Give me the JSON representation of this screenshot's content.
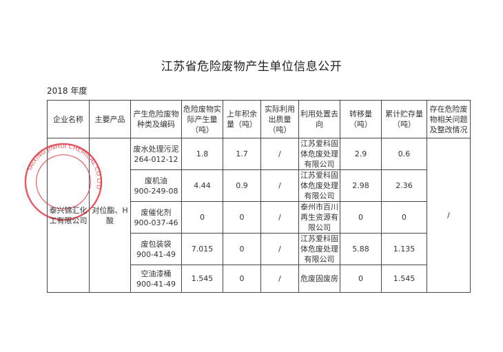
{
  "title": "江苏省危险废物产生单位信息公开",
  "year": "2018 年度",
  "headers": [
    "企业名称",
    "主要产品",
    "产生危险废物种类及编码",
    "危险废物实际产生量（吨）",
    "上年积余量（吨）",
    "实际利用出质量（吨）",
    "利用处置去向",
    "转移量（吨）",
    "累计贮存量（吨）",
    "存在危险废物相关问题及整改情况"
  ],
  "company": "泰兴锦汇化工有限公司",
  "product": "对位酯、H 酸",
  "issue": "/",
  "rows": [
    {
      "waste": "废水处理污泥",
      "code": "264-012-12",
      "produced": "1.8",
      "carry": "1.7",
      "used": "/",
      "dest": "江苏爱科固体危废处理有限公司",
      "transfer": "2.9",
      "stored": "0.6"
    },
    {
      "waste": "废机油",
      "code": "900-249-08",
      "produced": "4.44",
      "carry": "0.9",
      "used": "/",
      "dest": "江苏爱科固体危废处理有限公司",
      "transfer": "2.98",
      "stored": "2.36"
    },
    {
      "waste": "废催化剂",
      "code": "900-037-46",
      "produced": "0",
      "carry": "0",
      "used": "/",
      "dest": "泰州市百川再生资源有限公司",
      "transfer": "0",
      "stored": "0"
    },
    {
      "waste": "废包装袋",
      "code": "900-41-49",
      "produced": "7.015",
      "carry": "0",
      "used": "/",
      "dest": "江苏爱科固体危废处理有限公司",
      "transfer": "5.88",
      "stored": "1.135"
    },
    {
      "waste": "空油漆桶",
      "code": "900-41-49",
      "produced": "1.545",
      "carry": "0",
      "used": "/",
      "dest": "危废固废房",
      "transfer": "0",
      "stored": "1.545"
    }
  ],
  "seal": {
    "text_outer": "TAIXING JINHUI CHEMICAL CO LTD",
    "text_inner": "泰兴锦汇化工有限公司",
    "color": "#e0303a"
  }
}
